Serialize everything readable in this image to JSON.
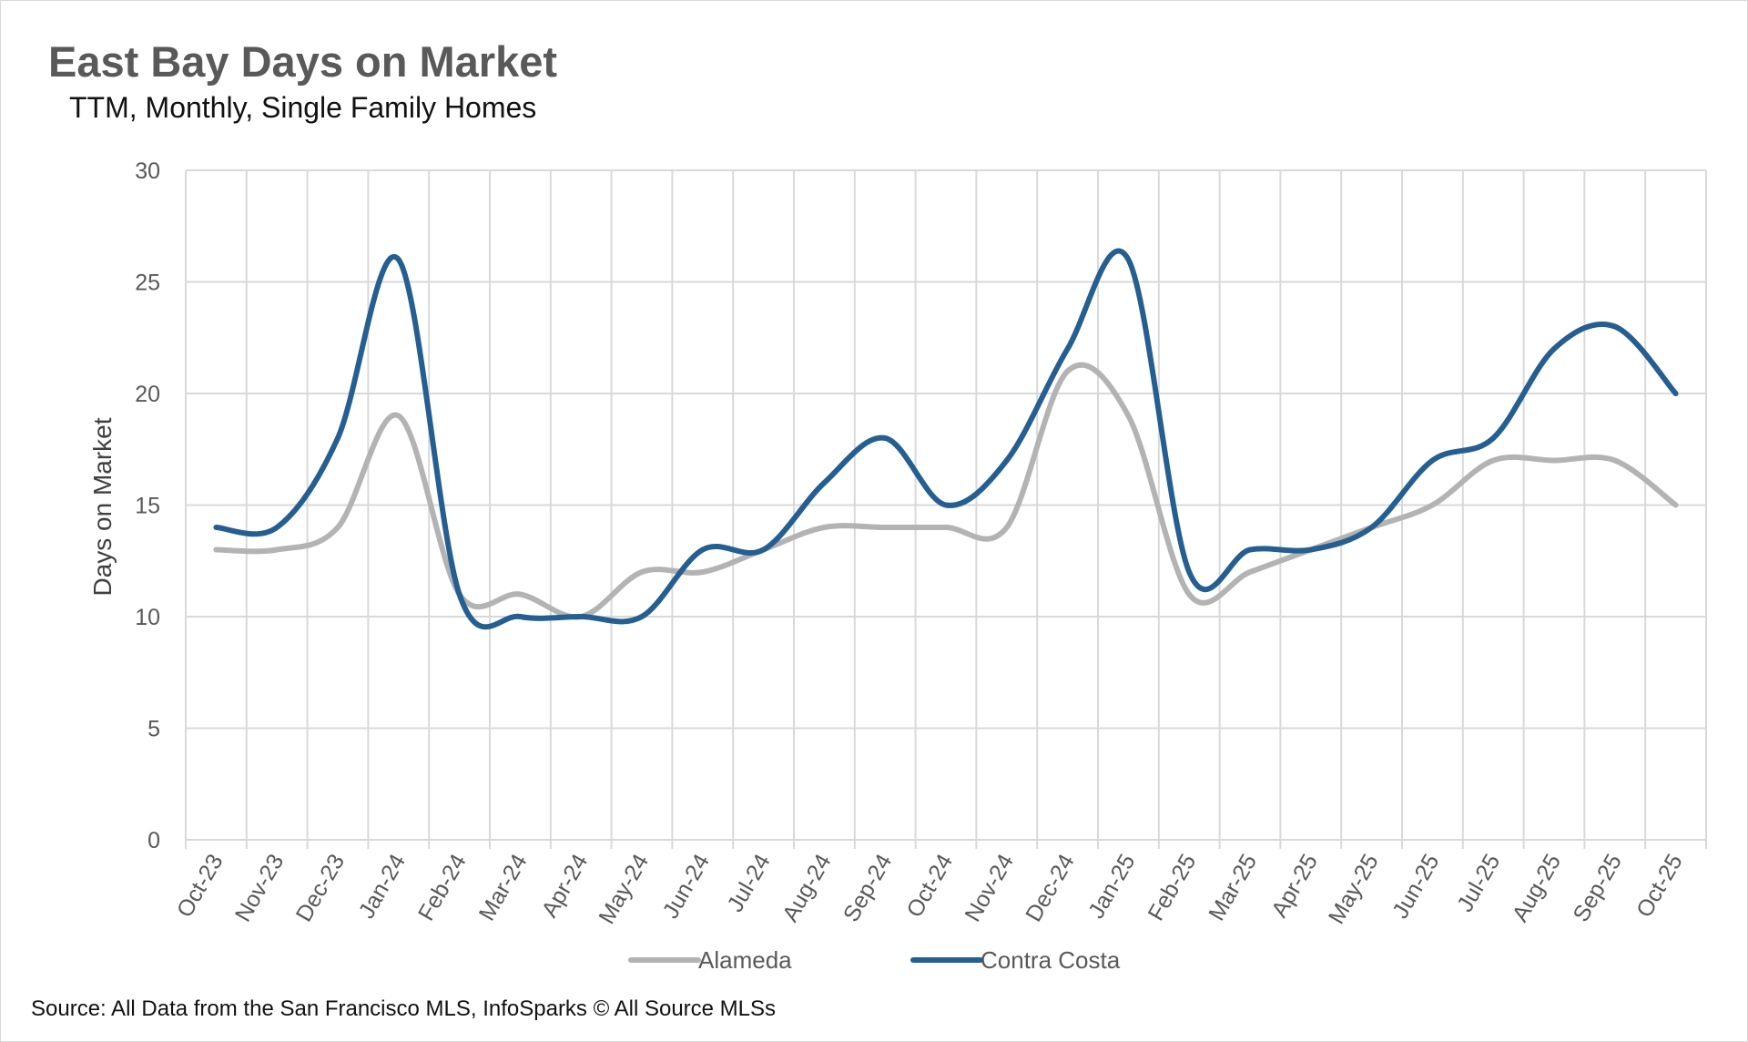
{
  "chart_data": {
    "type": "line",
    "title": "East Bay Days on Market",
    "subtitle": "TTM, Monthly, Single Family Homes",
    "xlabel": "",
    "ylabel": "Days on Market",
    "ylim": [
      0,
      30
    ],
    "yticks": [
      0,
      5,
      10,
      15,
      20,
      25,
      30
    ],
    "grid": true,
    "smoothed": true,
    "legend_position": "bottom",
    "categories": [
      "Oct-23",
      "Nov-23",
      "Dec-23",
      "Jan-24",
      "Feb-24",
      "Mar-24",
      "Apr-24",
      "May-24",
      "Jun-24",
      "Jul-24",
      "Aug-24",
      "Sep-24",
      "Oct-24",
      "Nov-24",
      "Dec-24",
      "Jan-25",
      "Feb-25",
      "Mar-25",
      "Apr-25",
      "May-25",
      "Jun-25",
      "Jul-25",
      "Aug-25",
      "Sep-25",
      "Oct-25"
    ],
    "series": [
      {
        "name": "Alameda",
        "color": "#b3b3b3",
        "values": [
          13,
          13,
          14,
          19,
          11,
          11,
          10,
          12,
          12,
          13,
          14,
          14,
          14,
          14,
          21,
          19,
          11,
          12,
          13,
          14,
          15,
          17,
          17,
          17,
          15
        ]
      },
      {
        "name": "Contra Costa",
        "color": "#255e91",
        "values": [
          14,
          14,
          18,
          26,
          11,
          10,
          10,
          10,
          13,
          13,
          16,
          18,
          15,
          17,
          22,
          26,
          12,
          13,
          13,
          14,
          17,
          18,
          22,
          23,
          20
        ]
      }
    ]
  },
  "source": "Source: All Data from the San Francisco MLS, InfoSparks © All Source MLSs"
}
